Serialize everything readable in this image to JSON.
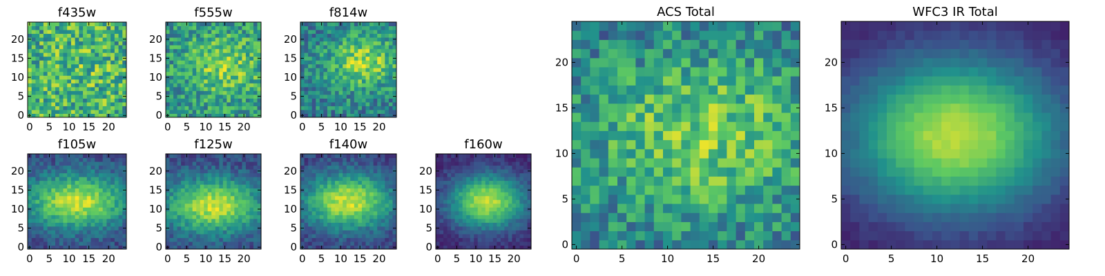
{
  "chart_data": [
    {
      "type": "heatmap",
      "title": "f435w",
      "grid": false,
      "xticks": [
        0,
        5,
        10,
        15,
        20
      ],
      "yticks": [
        0,
        5,
        10,
        15,
        20
      ],
      "xlim": [
        0,
        25
      ],
      "ylim": [
        0,
        25
      ]
    },
    {
      "type": "heatmap",
      "title": "f555w",
      "grid": false,
      "xticks": [
        0,
        5,
        10,
        15,
        20
      ],
      "yticks": [
        0,
        5,
        10,
        15,
        20
      ],
      "xlim": [
        0,
        25
      ],
      "ylim": [
        0,
        25
      ]
    },
    {
      "type": "heatmap",
      "title": "f814w",
      "grid": false,
      "xticks": [
        0,
        5,
        10,
        15,
        20
      ],
      "yticks": [
        0,
        5,
        10,
        15,
        20
      ],
      "xlim": [
        0,
        25
      ],
      "ylim": [
        0,
        25
      ]
    },
    {
      "type": "heatmap",
      "title": "f105w",
      "grid": false,
      "xticks": [
        0,
        5,
        10,
        15,
        20
      ],
      "yticks": [
        0,
        5,
        10,
        15,
        20
      ],
      "xlim": [
        0,
        25
      ],
      "ylim": [
        0,
        25
      ]
    },
    {
      "type": "heatmap",
      "title": "f125w",
      "grid": false,
      "xticks": [
        0,
        5,
        10,
        15,
        20
      ],
      "yticks": [
        0,
        5,
        10,
        15,
        20
      ],
      "xlim": [
        0,
        25
      ],
      "ylim": [
        0,
        25
      ]
    },
    {
      "type": "heatmap",
      "title": "f140w",
      "grid": false,
      "xticks": [
        0,
        5,
        10,
        15,
        20
      ],
      "yticks": [
        0,
        5,
        10,
        15,
        20
      ],
      "xlim": [
        0,
        25
      ],
      "ylim": [
        0,
        25
      ]
    },
    {
      "type": "heatmap",
      "title": "f160w",
      "grid": false,
      "xticks": [
        0,
        5,
        10,
        15,
        20
      ],
      "yticks": [
        0,
        5,
        10,
        15,
        20
      ],
      "xlim": [
        0,
        25
      ],
      "ylim": [
        0,
        25
      ]
    },
    {
      "type": "heatmap",
      "title": "ACS Total",
      "grid": false,
      "xticks": [
        0,
        5,
        10,
        15,
        20
      ],
      "yticks": [
        0,
        5,
        10,
        15,
        20
      ],
      "xlim": [
        0,
        25
      ],
      "ylim": [
        0,
        25
      ]
    },
    {
      "type": "heatmap",
      "title": "WFC3 IR Total",
      "grid": false,
      "xticks": [
        0,
        5,
        10,
        15,
        20
      ],
      "yticks": [
        0,
        5,
        10,
        15,
        20
      ],
      "xlim": [
        0,
        25
      ],
      "ylim": [
        0,
        25
      ]
    }
  ],
  "colormap": [
    "#440154",
    "#3b528b",
    "#21918c",
    "#5ec962",
    "#fde725"
  ]
}
